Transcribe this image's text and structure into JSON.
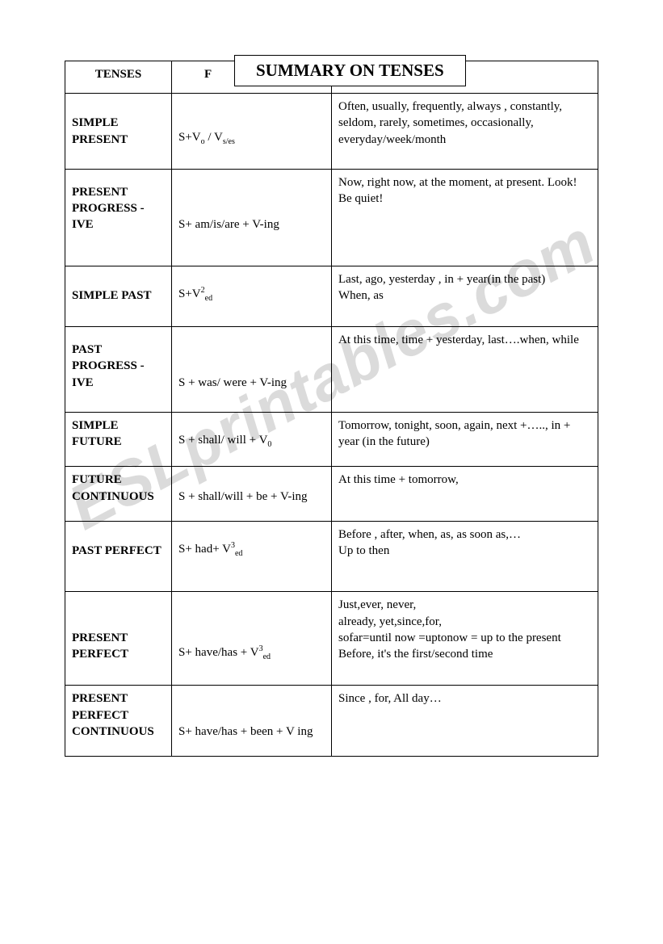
{
  "title": "SUMMARY ON TENSES",
  "watermark": "ESLprintables.com",
  "headers": {
    "col1": "TENSES",
    "col2": "F",
    "col3": ""
  },
  "rows": [
    {
      "tense": "SIMPLE PRESENT",
      "form_pre": "S+V",
      "form_sub1": "o",
      "form_mid": " / V",
      "form_sub2": "s/es",
      "form_post": "",
      "adv": "Often, usually, frequently, always , constantly, seldom, rarely, sometimes, occasionally, everyday/week/month",
      "cls": "cell-pad"
    },
    {
      "tense": "PRESENT PROGRESS - IVE",
      "form_pre": "S+ am/is/are + V-ing",
      "form_sub1": "",
      "form_mid": "",
      "form_sub2": "",
      "form_post": "",
      "adv": "Now, right now, at the moment, at present. Look!\nBe quiet!",
      "cls": "cell-pad2"
    },
    {
      "tense": "SIMPLE  PAST",
      "form_pre": " S+V",
      "form_sup": "2",
      "form_sub1": "ed",
      "form_mid": "",
      "form_sub2": "",
      "form_post": "",
      "adv": "Last, ago, yesterday , in + year(in the past)\nWhen, as",
      "cls": "cell-short"
    },
    {
      "tense": "PAST PROGRESS - IVE",
      "form_pre": "S + was/ were + V-ing",
      "form_sub1": "",
      "form_mid": "",
      "form_sub2": "",
      "form_post": "",
      "adv": "At this time, time + yesterday, last….when, while",
      "cls": "cell-pad"
    },
    {
      "tense": "SIMPLE FUTURE",
      "form_pre": "S + shall/ will + V",
      "form_sub1": "0",
      "form_mid": "",
      "form_sub2": "",
      "form_post": "",
      "adv": "Tomorrow, tonight, soon, again, next +….., in + year (in the future)",
      "cls": "cell-mid"
    },
    {
      "tense": "FUTURE CONTINUOUS",
      "form_pre": "S + shall/will + be + V-ing",
      "form_sub1": "",
      "form_mid": "",
      "form_sub2": "",
      "form_post": "",
      "adv": "At this time + tomorrow,",
      "cls": "cell-mid"
    },
    {
      "tense": "PAST PERFECT",
      "form_pre": "S+ had+ V",
      "form_sup": "3",
      "form_sub1": "ed",
      "form_mid": "",
      "form_sub2": "",
      "form_post": "",
      "adv": "Before , after, when, as, as soon as,…\nUp to then",
      "cls": "cell-pad2"
    },
    {
      "tense": "PRESENT PERFECT",
      "form_pre": "S+ have/has + V",
      "form_sup": "3",
      "form_sub1": "ed",
      "form_mid": "",
      "form_sub2": "",
      "form_post": "",
      "adv": "Just,ever, never,\nalready, yet,since,for,\nsofar=until now =uptonow = up to the present\nBefore,  it's the first/second time",
      "cls": "cell-short"
    },
    {
      "tense": "PRESENT PERFECT CONTINUOUS",
      "form_pre": "S+ have/has + been + V ing",
      "form_sub1": "",
      "form_mid": "",
      "form_sub2": "",
      "form_post": "",
      "adv": "Since , for,  All day…",
      "cls": "cell-mid"
    }
  ]
}
